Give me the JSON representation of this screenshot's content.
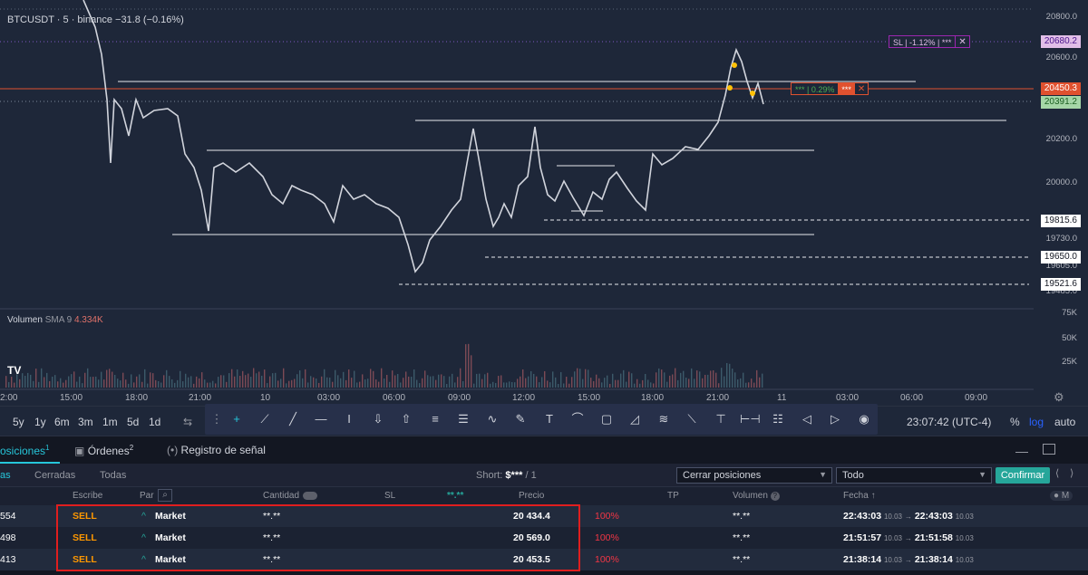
{
  "chart": {
    "symbol": "BTCUSDT · 5 · binance",
    "change": "−31.8 (−0.16%)",
    "volume_label": "Volumen",
    "volume_sma": "SMA 9",
    "volume_value": "4.334K",
    "price_axis": [
      "20800.0",
      "20600.0",
      "20200.0",
      "20000.0",
      "19730.0",
      "19605.0",
      "19485.0"
    ],
    "volume_axis": [
      "75K",
      "50K",
      "25K"
    ],
    "time_axis": [
      "2:00",
      "15:00",
      "18:00",
      "21:00",
      "10",
      "03:00",
      "06:00",
      "09:00",
      "12:00",
      "15:00",
      "18:00",
      "21:00",
      "11",
      "03:00",
      "06:00",
      "09:00"
    ],
    "price_tags": {
      "sl_level": "20680.2",
      "current": "20450.3",
      "bid": "20391.2",
      "level1": "19815.6",
      "level2": "19650.0",
      "level3": "19521.6"
    },
    "sl_box": {
      "text": "SL | -1.12% | ***",
      "close": "✕"
    },
    "pos_box": {
      "text": "*** | 0.29%",
      "qty": "***",
      "close": "✕"
    },
    "colors": {
      "background": "#1e2739",
      "current": "#e0512f",
      "sl": "#9c27b0",
      "bid": "#a5d6a7"
    }
  },
  "toolbar": {
    "timeframes": [
      "5y",
      "1y",
      "6m",
      "3m",
      "1m",
      "5d",
      "1d"
    ],
    "clock": "23:07:42 (UTC-4)",
    "percent": "%",
    "log": "log",
    "auto": "auto"
  },
  "tabs": {
    "positions": "osiciones",
    "positions_count": "1",
    "orders": "Órdenes",
    "orders_count": "2",
    "signal": "Registro de señal"
  },
  "filter": {
    "tab_open": "as",
    "tab_closed": "Cerradas",
    "tab_all": "Todas",
    "short_label": "Short:",
    "short_value": "$***",
    "short_count": "/ 1",
    "close_select": "Cerrar posiciones",
    "all_select": "Todo",
    "confirm": "Confirmar"
  },
  "table": {
    "headers": {
      "writes": "Escribe",
      "pair": "Par",
      "qty": "Cantidad",
      "sl": "SL",
      "masked": "**.**",
      "price": "Precio",
      "tp": "TP",
      "volume": "Volumen",
      "date": "Fecha ↑"
    },
    "rows": [
      {
        "id": "554",
        "side": "SELL",
        "pair": "Market",
        "qty": "**.**",
        "price": "20 434.4",
        "pct": "100%",
        "volume": "**.**",
        "time_from": "22:43:03",
        "date_from": "10.03",
        "arrow": "→",
        "time_to": "22:43:03",
        "date_to": "10.03"
      },
      {
        "id": "498",
        "side": "SELL",
        "pair": "Market",
        "qty": "**.**",
        "price": "20 569.0",
        "pct": "100%",
        "volume": "**.**",
        "time_from": "21:51:57",
        "date_from": "10.03",
        "arrow": "→",
        "time_to": "21:51:58",
        "date_to": "10.03"
      },
      {
        "id": "413",
        "side": "SELL",
        "pair": "Market",
        "qty": "**.**",
        "price": "20 453.5",
        "pct": "100%",
        "volume": "**.**",
        "time_from": "21:38:14",
        "date_from": "10.03",
        "arrow": "→",
        "time_to": "21:38:14",
        "date_to": "10.03"
      }
    ]
  }
}
